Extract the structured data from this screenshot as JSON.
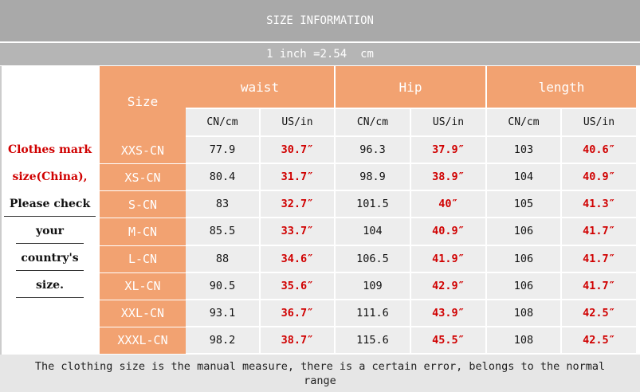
{
  "header": {
    "title": "SIZE INFORMATION",
    "conversion": "1 inch =2.54  cm"
  },
  "note": [
    "Clothes mark",
    "size(China),",
    "Please check",
    "your",
    "country's",
    "size."
  ],
  "table": {
    "size_header": "Size",
    "groups": [
      "waist",
      "Hip",
      "length"
    ],
    "units": [
      "CN/cm",
      "US/in"
    ],
    "rows": [
      [
        "XXS-CN",
        "77.9",
        "30.7″",
        "96.3",
        "37.9″",
        "103",
        "40.6″"
      ],
      [
        "XS-CN",
        "80.4",
        "31.7″",
        "98.9",
        "38.9″",
        "104",
        "40.9″"
      ],
      [
        "S-CN",
        "83",
        "32.7″",
        "101.5",
        "40″",
        "105",
        "41.3″"
      ],
      [
        "M-CN",
        "85.5",
        "33.7″",
        "104",
        "40.9″",
        "106",
        "41.7″"
      ],
      [
        "L-CN",
        "88",
        "34.6″",
        "106.5",
        "41.9″",
        "106",
        "41.7″"
      ],
      [
        "XL-CN",
        "90.5",
        "35.6″",
        "109",
        "42.9″",
        "106",
        "41.7″"
      ],
      [
        "XXL-CN",
        "93.1",
        "36.7″",
        "111.6",
        "43.9″",
        "108",
        "42.5″"
      ],
      [
        "XXXL-CN",
        "98.2",
        "38.7″",
        "115.6",
        "45.5″",
        "108",
        "42.5″"
      ]
    ]
  },
  "footer": "The clothing size is the manual measure, there is a certain error, belongs to the normal range"
}
